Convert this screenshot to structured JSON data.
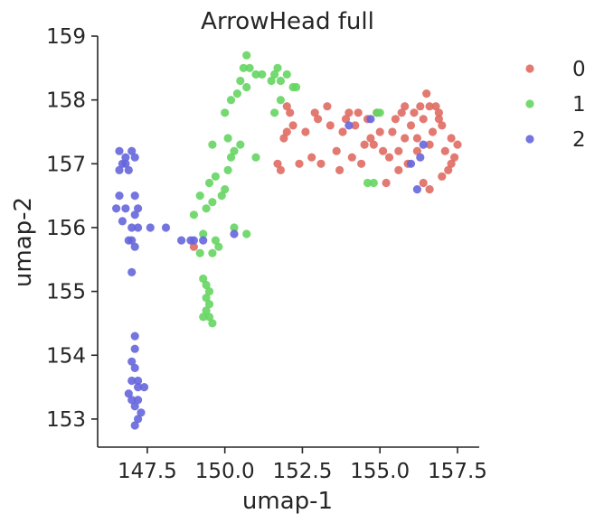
{
  "chart_data": {
    "type": "scatter",
    "title": "ArrowHead full",
    "xlabel": "umap-1",
    "ylabel": "umap-2",
    "xlim": [
      145.9,
      158.2
    ],
    "ylim": [
      152.56,
      159.0
    ],
    "xticks": [
      "147.5",
      "150.0",
      "152.5",
      "155.0",
      "157.5"
    ],
    "xtick_values": [
      147.5,
      150.0,
      152.5,
      155.0,
      157.5
    ],
    "yticks": [
      "153",
      "154",
      "155",
      "156",
      "157",
      "158",
      "159"
    ],
    "ytick_values": [
      153,
      154,
      155,
      156,
      157,
      158,
      159
    ],
    "grid": false,
    "legend_position": "right",
    "series": [
      {
        "name": "0",
        "color": "#e06c63",
        "points": [
          [
            149.0,
            155.7
          ],
          [
            151.7,
            157.0
          ],
          [
            151.8,
            156.9
          ],
          [
            151.9,
            157.4
          ],
          [
            152.0,
            157.5
          ],
          [
            152.1,
            157.8
          ],
          [
            152.0,
            157.9
          ],
          [
            152.2,
            157.6
          ],
          [
            152.4,
            157.0
          ],
          [
            152.6,
            157.5
          ],
          [
            152.8,
            157.1
          ],
          [
            152.9,
            157.8
          ],
          [
            153.0,
            157.7
          ],
          [
            153.1,
            157.0
          ],
          [
            153.3,
            157.9
          ],
          [
            153.4,
            157.6
          ],
          [
            153.6,
            157.2
          ],
          [
            153.7,
            156.9
          ],
          [
            153.8,
            157.5
          ],
          [
            153.9,
            157.7
          ],
          [
            154.0,
            157.8
          ],
          [
            154.1,
            157.1
          ],
          [
            154.2,
            157.6
          ],
          [
            154.3,
            157.8
          ],
          [
            154.4,
            157.0
          ],
          [
            154.5,
            157.3
          ],
          [
            154.6,
            157.7
          ],
          [
            154.7,
            157.4
          ],
          [
            154.8,
            157.3
          ],
          [
            154.9,
            157.8
          ],
          [
            155.0,
            157.5
          ],
          [
            155.1,
            157.2
          ],
          [
            155.2,
            156.7
          ],
          [
            155.3,
            157.1
          ],
          [
            155.4,
            157.5
          ],
          [
            155.5,
            157.7
          ],
          [
            155.6,
            157.2
          ],
          [
            155.7,
            157.8
          ],
          [
            155.8,
            157.9
          ],
          [
            155.9,
            157.0
          ],
          [
            156.0,
            157.6
          ],
          [
            156.1,
            157.8
          ],
          [
            156.2,
            157.4
          ],
          [
            156.3,
            157.9
          ],
          [
            156.4,
            157.7
          ],
          [
            156.5,
            158.1
          ],
          [
            156.6,
            157.3
          ],
          [
            156.7,
            157.5
          ],
          [
            156.8,
            157.9
          ],
          [
            156.9,
            157.7
          ],
          [
            157.0,
            157.6
          ],
          [
            157.1,
            157.2
          ],
          [
            157.2,
            156.9
          ],
          [
            157.3,
            157.4
          ],
          [
            157.4,
            157.1
          ],
          [
            157.5,
            157.3
          ],
          [
            156.6,
            156.6
          ],
          [
            156.4,
            156.7
          ],
          [
            157.0,
            156.8
          ],
          [
            157.3,
            157.0
          ],
          [
            156.2,
            157.2
          ],
          [
            155.6,
            156.9
          ],
          [
            155.8,
            157.4
          ],
          [
            156.9,
            157.8
          ],
          [
            156.6,
            157.9
          ]
        ]
      },
      {
        "name": "1",
        "color": "#65d562",
        "points": [
          [
            149.3,
            154.6
          ],
          [
            149.4,
            154.7
          ],
          [
            149.5,
            154.8
          ],
          [
            149.6,
            154.5
          ],
          [
            149.4,
            154.9
          ],
          [
            149.5,
            154.6
          ],
          [
            149.3,
            155.2
          ],
          [
            149.4,
            155.1
          ],
          [
            149.5,
            155.0
          ],
          [
            149.6,
            155.6
          ],
          [
            149.7,
            155.8
          ],
          [
            149.8,
            155.7
          ],
          [
            149.2,
            155.6
          ],
          [
            149.3,
            155.9
          ],
          [
            149.0,
            156.2
          ],
          [
            149.4,
            156.3
          ],
          [
            149.6,
            156.4
          ],
          [
            149.2,
            156.5
          ],
          [
            149.5,
            156.7
          ],
          [
            149.7,
            156.8
          ],
          [
            149.9,
            156.5
          ],
          [
            150.0,
            156.6
          ],
          [
            150.1,
            156.9
          ],
          [
            150.2,
            157.1
          ],
          [
            150.3,
            157.2
          ],
          [
            150.5,
            157.3
          ],
          [
            150.1,
            157.4
          ],
          [
            149.6,
            157.3
          ],
          [
            150.3,
            156.0
          ],
          [
            150.7,
            155.9
          ],
          [
            150.0,
            157.8
          ],
          [
            150.2,
            158.0
          ],
          [
            150.4,
            158.1
          ],
          [
            150.5,
            158.3
          ],
          [
            150.6,
            158.5
          ],
          [
            150.7,
            158.7
          ],
          [
            150.8,
            158.5
          ],
          [
            151.0,
            158.4
          ],
          [
            151.2,
            158.4
          ],
          [
            150.7,
            158.2
          ],
          [
            151.0,
            157.1
          ],
          [
            151.5,
            158.3
          ],
          [
            151.6,
            158.4
          ],
          [
            151.7,
            158.5
          ],
          [
            151.8,
            158.3
          ],
          [
            152.0,
            158.4
          ],
          [
            152.2,
            158.2
          ],
          [
            151.6,
            157.8
          ],
          [
            151.8,
            158.0
          ],
          [
            152.3,
            158.2
          ],
          [
            154.6,
            156.7
          ],
          [
            154.8,
            156.7
          ],
          [
            154.9,
            157.8
          ],
          [
            155.0,
            157.8
          ]
        ]
      },
      {
        "name": "2",
        "color": "#6666dd",
        "points": [
          [
            146.5,
            156.3
          ],
          [
            146.6,
            156.5
          ],
          [
            146.7,
            156.1
          ],
          [
            146.8,
            156.3
          ],
          [
            146.9,
            155.8
          ],
          [
            147.0,
            156.0
          ],
          [
            147.1,
            156.2
          ],
          [
            147.2,
            156.3
          ],
          [
            146.6,
            156.9
          ],
          [
            146.7,
            157.0
          ],
          [
            146.6,
            157.2
          ],
          [
            146.8,
            157.1
          ],
          [
            146.9,
            156.9
          ],
          [
            147.0,
            157.2
          ],
          [
            147.1,
            157.1
          ],
          [
            146.8,
            157.0
          ],
          [
            147.0,
            155.8
          ],
          [
            147.1,
            155.7
          ],
          [
            147.0,
            155.3
          ],
          [
            147.1,
            156.5
          ],
          [
            147.2,
            156.0
          ],
          [
            147.6,
            156.0
          ],
          [
            148.1,
            156.0
          ],
          [
            148.6,
            155.8
          ],
          [
            148.9,
            155.8
          ],
          [
            149.3,
            155.8
          ],
          [
            150.3,
            155.9
          ],
          [
            149.0,
            155.8
          ],
          [
            147.1,
            154.3
          ],
          [
            147.1,
            154.1
          ],
          [
            147.0,
            153.9
          ],
          [
            147.1,
            153.8
          ],
          [
            147.0,
            153.6
          ],
          [
            147.2,
            153.5
          ],
          [
            146.9,
            153.4
          ],
          [
            147.0,
            153.3
          ],
          [
            147.1,
            153.2
          ],
          [
            147.2,
            153.3
          ],
          [
            147.3,
            153.1
          ],
          [
            147.2,
            153.0
          ],
          [
            147.1,
            152.9
          ],
          [
            147.4,
            153.5
          ],
          [
            147.2,
            153.6
          ],
          [
            154.0,
            157.6
          ],
          [
            154.7,
            157.7
          ],
          [
            156.0,
            157.0
          ],
          [
            156.2,
            156.6
          ],
          [
            156.4,
            157.3
          ],
          [
            156.3,
            157.1
          ]
        ]
      }
    ]
  }
}
